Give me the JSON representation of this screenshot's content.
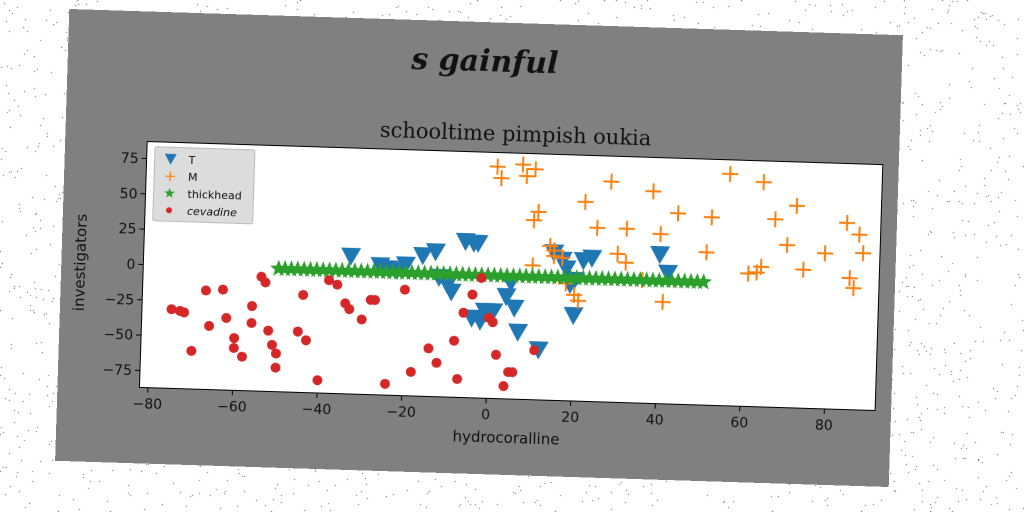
{
  "figure": {
    "suptitle": "s gainful"
  },
  "chart_data": {
    "type": "scatter",
    "title": "schooltime pimpish oukia",
    "xlabel": "hydrocoralline",
    "ylabel": "investigators",
    "xlim": [
      -82,
      92
    ],
    "ylim": [
      -87,
      87
    ],
    "xticks": [
      -80,
      -60,
      -40,
      -20,
      0,
      20,
      40,
      60,
      80
    ],
    "yticks": [
      -75,
      -50,
      -25,
      0,
      25,
      50,
      75
    ],
    "grid": false,
    "legend_position": "top-left",
    "series": [
      {
        "name": "T",
        "marker": "triangle-down",
        "color": "#1f77b4",
        "points": [
          [
            -33,
            10
          ],
          [
            -26,
            4
          ],
          [
            -24,
            2
          ],
          [
            -22,
            1
          ],
          [
            -20,
            5
          ],
          [
            -16,
            12
          ],
          [
            -13,
            15
          ],
          [
            -12,
            -3
          ],
          [
            -10,
            -8
          ],
          [
            -9,
            -13
          ],
          [
            -6,
            23
          ],
          [
            -4,
            22
          ],
          [
            -3,
            22
          ],
          [
            -4,
            -31
          ],
          [
            -2,
            -33
          ],
          [
            -1,
            -26
          ],
          [
            1,
            -26
          ],
          [
            4,
            -15
          ],
          [
            6,
            -23
          ],
          [
            7,
            -40
          ],
          [
            12,
            -52
          ],
          [
            15,
            17
          ],
          [
            17,
            12
          ],
          [
            18,
            6
          ],
          [
            20,
            -2
          ],
          [
            20,
            -27
          ],
          [
            22,
            12
          ],
          [
            24,
            14
          ],
          [
            40,
            18
          ],
          [
            42,
            5
          ],
          [
            19,
            -5
          ],
          [
            5,
            -5
          ]
        ]
      },
      {
        "name": "M",
        "marker": "plus",
        "color": "#ff7f0e",
        "points": [
          [
            1,
            77
          ],
          [
            2,
            69
          ],
          [
            7,
            79
          ],
          [
            8,
            71
          ],
          [
            10,
            76
          ],
          [
            10,
            40
          ],
          [
            11,
            46
          ],
          [
            10,
            8
          ],
          [
            14,
            22
          ],
          [
            15,
            15
          ],
          [
            15,
            19
          ],
          [
            17,
            14
          ],
          [
            18,
            -4
          ],
          [
            20,
            -12
          ],
          [
            21,
            -16
          ],
          [
            22,
            54
          ],
          [
            25,
            36
          ],
          [
            28,
            69
          ],
          [
            30,
            18
          ],
          [
            32,
            36
          ],
          [
            32,
            12
          ],
          [
            36,
            0
          ],
          [
            38,
            63
          ],
          [
            40,
            33
          ],
          [
            41,
            -15
          ],
          [
            44,
            48
          ],
          [
            51,
            21
          ],
          [
            52,
            46
          ],
          [
            56,
            77
          ],
          [
            61,
            7
          ],
          [
            63,
            8
          ],
          [
            64,
            72
          ],
          [
            64,
            12
          ],
          [
            67,
            46
          ],
          [
            70,
            28
          ],
          [
            72,
            56
          ],
          [
            74,
            11
          ],
          [
            79,
            23
          ],
          [
            84,
            45
          ],
          [
            85,
            6
          ],
          [
            86,
            -1
          ],
          [
            87,
            37
          ],
          [
            88,
            24
          ]
        ]
      },
      {
        "name": "thickhead",
        "marker": "star",
        "color": "#2ca02c",
        "x_start": -50,
        "x_end": 51,
        "x_step": 1.5,
        "y": 0
      },
      {
        "name": "cevadine",
        "marker": "circle",
        "color": "#d62728",
        "points": [
          [
            -75,
            -31
          ],
          [
            -73,
            -32
          ],
          [
            -72,
            -33
          ],
          [
            -70,
            -60
          ],
          [
            -67,
            -17
          ],
          [
            -66,
            -42
          ],
          [
            -63,
            -16
          ],
          [
            -62,
            -36
          ],
          [
            -60,
            -50
          ],
          [
            -60,
            -57
          ],
          [
            -58,
            -63
          ],
          [
            -56,
            -27
          ],
          [
            -56,
            -39
          ],
          [
            -54,
            -6
          ],
          [
            -53,
            -10
          ],
          [
            -52,
            -44
          ],
          [
            -51,
            -54
          ],
          [
            -50,
            -60
          ],
          [
            -50,
            -70
          ],
          [
            -45,
            -44
          ],
          [
            -44,
            -18
          ],
          [
            -43,
            -50
          ],
          [
            -40,
            -78
          ],
          [
            -38,
            -7
          ],
          [
            -36,
            -10
          ],
          [
            -34,
            -23
          ],
          [
            -33,
            -27
          ],
          [
            -30,
            -34
          ],
          [
            -28,
            -20
          ],
          [
            -27,
            -20
          ],
          [
            -24,
            -79
          ],
          [
            -20,
            -12
          ],
          [
            -18,
            -70
          ],
          [
            -14,
            -53
          ],
          [
            -12,
            -63
          ],
          [
            -8,
            -47
          ],
          [
            -7,
            -74
          ],
          [
            -6,
            -27
          ],
          [
            -4,
            -14
          ],
          [
            -2,
            -2
          ],
          [
            0,
            -30
          ],
          [
            1,
            -33
          ],
          [
            2,
            -56
          ],
          [
            4,
            -78
          ],
          [
            5,
            -68
          ],
          [
            6,
            -68
          ],
          [
            11,
            -52
          ]
        ]
      }
    ]
  }
}
